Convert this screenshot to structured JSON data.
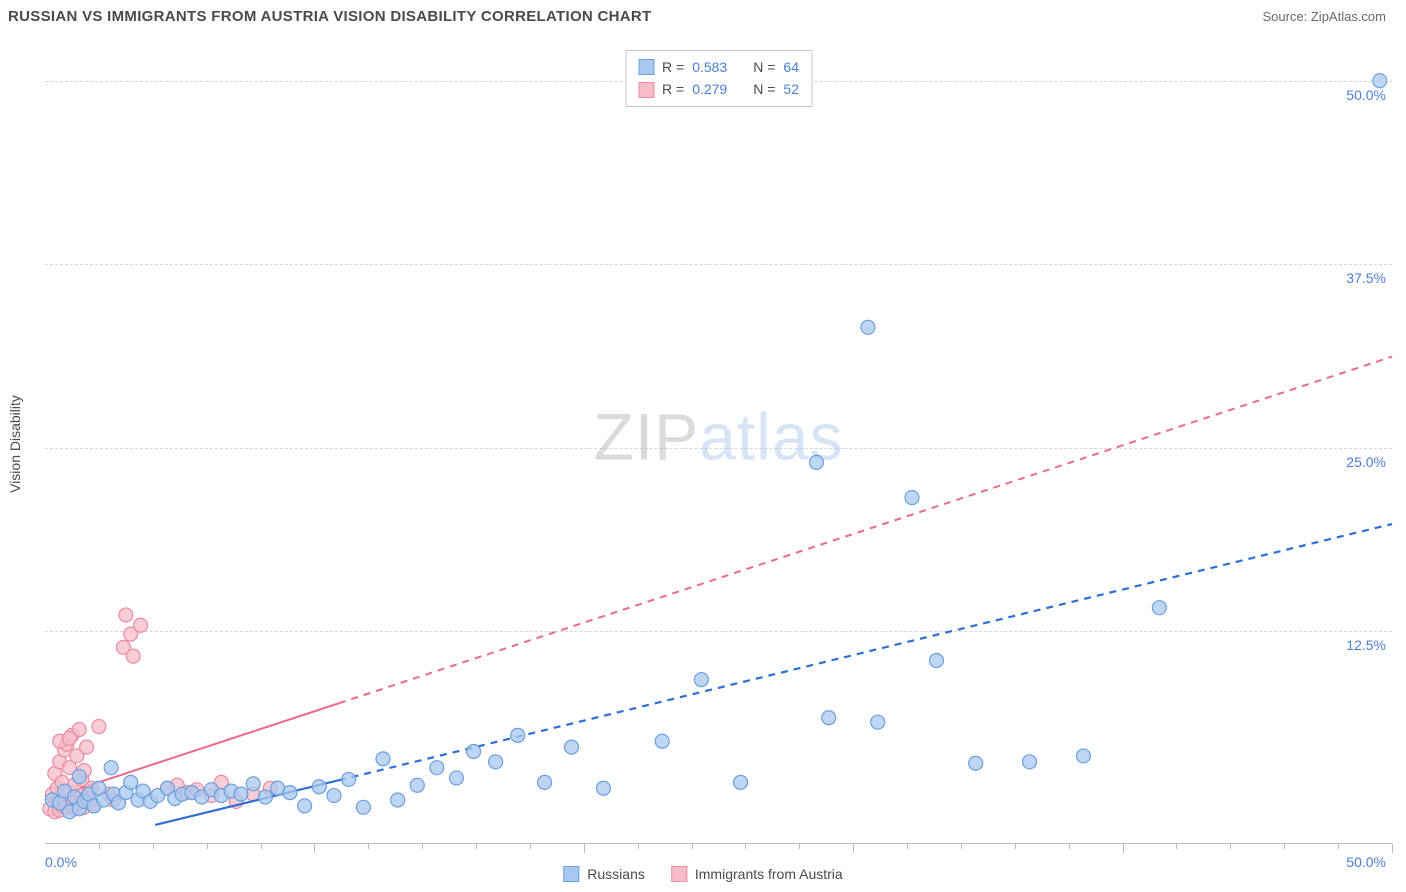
{
  "header": {
    "title": "RUSSIAN VS IMMIGRANTS FROM AUSTRIA VISION DISABILITY CORRELATION CHART",
    "source_prefix": "Source: ",
    "source_name": "ZipAtlas.com"
  },
  "watermark": {
    "part1": "ZIP",
    "part2": "atlas"
  },
  "axes": {
    "y_label": "Vision Disability",
    "x_min": 0,
    "x_max": 55,
    "y_min": -2,
    "y_max": 52.5,
    "y_ticks": [
      {
        "v": 12.5,
        "label": "12.5%"
      },
      {
        "v": 25.0,
        "label": "25.0%"
      },
      {
        "v": 37.5,
        "label": "37.5%"
      },
      {
        "v": 50.0,
        "label": "50.0%"
      }
    ],
    "x_ticks_major": [
      11,
      22,
      33,
      44,
      55
    ],
    "x_ticks_minor": [
      2.2,
      4.4,
      6.6,
      8.8,
      13.2,
      15.4,
      17.6,
      19.8,
      24.2,
      26.4,
      28.6,
      30.8,
      35.2,
      37.4,
      39.6,
      41.8,
      46.2,
      48.4,
      50.6,
      52.8
    ],
    "x_origin_label": "0.0%",
    "x_max_label": "50.0%",
    "grid_color": "#d6d6d6",
    "axis_color": "#b9b9b9"
  },
  "stat_legend": {
    "rows": [
      {
        "swatch_fill": "#a8c8ef",
        "swatch_border": "#6c9fdd",
        "r_label": "R =",
        "r_value": "0.583",
        "n_label": "N =",
        "n_value": "64"
      },
      {
        "swatch_fill": "#f6bcca",
        "swatch_border": "#e98ba3",
        "r_label": "R =",
        "r_value": "0.279",
        "n_label": "N =",
        "n_value": "52"
      }
    ]
  },
  "bottom_legend": {
    "items": [
      {
        "swatch_fill": "#a8c8ef",
        "swatch_border": "#6c9fdd",
        "label": "Russians"
      },
      {
        "swatch_fill": "#f6bcca",
        "swatch_border": "#e98ba3",
        "label": "Immigrants from Austria"
      }
    ]
  },
  "series": {
    "blue": {
      "marker_fill": "#a8c8ef",
      "marker_stroke": "#6c9fdd",
      "marker_r": 7,
      "line_color": "#2d6fd6",
      "line_width": 2.2,
      "line_solid_until_x": 12,
      "trend": {
        "x1": 4.5,
        "y1": -0.7,
        "x2": 55,
        "y2": 19.8
      },
      "points": [
        [
          0.3,
          1.0
        ],
        [
          0.6,
          0.8
        ],
        [
          0.8,
          1.6
        ],
        [
          1.0,
          0.2
        ],
        [
          1.2,
          1.2
        ],
        [
          1.4,
          2.6
        ],
        [
          1.4,
          0.4
        ],
        [
          1.6,
          0.9
        ],
        [
          1.8,
          1.4
        ],
        [
          2.0,
          0.6
        ],
        [
          2.2,
          1.8
        ],
        [
          2.4,
          1.0
        ],
        [
          2.7,
          3.2
        ],
        [
          2.8,
          1.4
        ],
        [
          3.0,
          0.8
        ],
        [
          3.3,
          1.5
        ],
        [
          3.5,
          2.2
        ],
        [
          3.8,
          1.0
        ],
        [
          4.0,
          1.6
        ],
        [
          4.3,
          0.9
        ],
        [
          4.6,
          1.3
        ],
        [
          5.0,
          1.8
        ],
        [
          5.3,
          1.1
        ],
        [
          5.6,
          1.4
        ],
        [
          6.0,
          1.5
        ],
        [
          6.4,
          1.2
        ],
        [
          6.8,
          1.7
        ],
        [
          7.2,
          1.3
        ],
        [
          7.6,
          1.6
        ],
        [
          8.0,
          1.4
        ],
        [
          8.5,
          2.1
        ],
        [
          9.0,
          1.2
        ],
        [
          9.5,
          1.8
        ],
        [
          10.0,
          1.5
        ],
        [
          10.6,
          0.6
        ],
        [
          11.2,
          1.9
        ],
        [
          11.8,
          1.3
        ],
        [
          12.4,
          2.4
        ],
        [
          13.0,
          0.5
        ],
        [
          13.8,
          3.8
        ],
        [
          14.4,
          1.0
        ],
        [
          15.2,
          2.0
        ],
        [
          16.0,
          3.2
        ],
        [
          16.8,
          2.5
        ],
        [
          17.5,
          4.3
        ],
        [
          18.4,
          3.6
        ],
        [
          19.3,
          5.4
        ],
        [
          20.4,
          2.2
        ],
        [
          21.5,
          4.6
        ],
        [
          22.8,
          1.8
        ],
        [
          25.2,
          5.0
        ],
        [
          26.8,
          9.2
        ],
        [
          28.4,
          2.2
        ],
        [
          31.5,
          24.0
        ],
        [
          32.0,
          6.6
        ],
        [
          33.6,
          33.2
        ],
        [
          34.0,
          6.3
        ],
        [
          35.4,
          21.6
        ],
        [
          36.4,
          10.5
        ],
        [
          38.0,
          3.5
        ],
        [
          40.2,
          3.6
        ],
        [
          42.4,
          4.0
        ],
        [
          45.5,
          14.1
        ],
        [
          54.5,
          50.0
        ]
      ]
    },
    "pink": {
      "marker_fill": "#f6bcca",
      "marker_stroke": "#e98ba3",
      "marker_r": 7,
      "line_color": "#ec6a8b",
      "line_width": 2,
      "line_solid_until_x": 12,
      "trend": {
        "x1": 0,
        "y1": 1.0,
        "x2": 55,
        "y2": 31.2
      },
      "points": [
        [
          0.2,
          0.4
        ],
        [
          0.3,
          1.4
        ],
        [
          0.4,
          0.2
        ],
        [
          0.4,
          2.8
        ],
        [
          0.5,
          0.9
        ],
        [
          0.5,
          1.8
        ],
        [
          0.6,
          0.3
        ],
        [
          0.6,
          3.6
        ],
        [
          0.7,
          0.6
        ],
        [
          0.7,
          2.2
        ],
        [
          0.8,
          1.1
        ],
        [
          0.8,
          4.4
        ],
        [
          0.9,
          0.5
        ],
        [
          0.9,
          4.8
        ],
        [
          1.0,
          1.6
        ],
        [
          1.0,
          3.2
        ],
        [
          1.1,
          0.7
        ],
        [
          1.1,
          5.4
        ],
        [
          1.2,
          0.4
        ],
        [
          1.2,
          2.0
        ],
        [
          1.3,
          1.0
        ],
        [
          1.3,
          4.0
        ],
        [
          1.4,
          0.8
        ],
        [
          1.4,
          5.8
        ],
        [
          1.5,
          1.3
        ],
        [
          1.5,
          2.4
        ],
        [
          1.6,
          0.5
        ],
        [
          1.6,
          3.0
        ],
        [
          1.7,
          1.2
        ],
        [
          1.7,
          4.6
        ],
        [
          1.8,
          0.9
        ],
        [
          1.9,
          1.8
        ],
        [
          2.0,
          0.6
        ],
        [
          2.2,
          6.0
        ],
        [
          0.6,
          5.0
        ],
        [
          1.0,
          5.2
        ],
        [
          2.6,
          1.4
        ],
        [
          2.8,
          1.0
        ],
        [
          3.2,
          11.4
        ],
        [
          3.3,
          13.6
        ],
        [
          3.5,
          12.3
        ],
        [
          3.6,
          10.8
        ],
        [
          3.9,
          12.9
        ],
        [
          5.0,
          1.8
        ],
        [
          5.4,
          2.0
        ],
        [
          5.8,
          1.5
        ],
        [
          6.2,
          1.7
        ],
        [
          6.8,
          1.3
        ],
        [
          7.2,
          2.2
        ],
        [
          7.8,
          0.9
        ],
        [
          8.5,
          1.4
        ],
        [
          9.2,
          1.8
        ]
      ]
    }
  }
}
